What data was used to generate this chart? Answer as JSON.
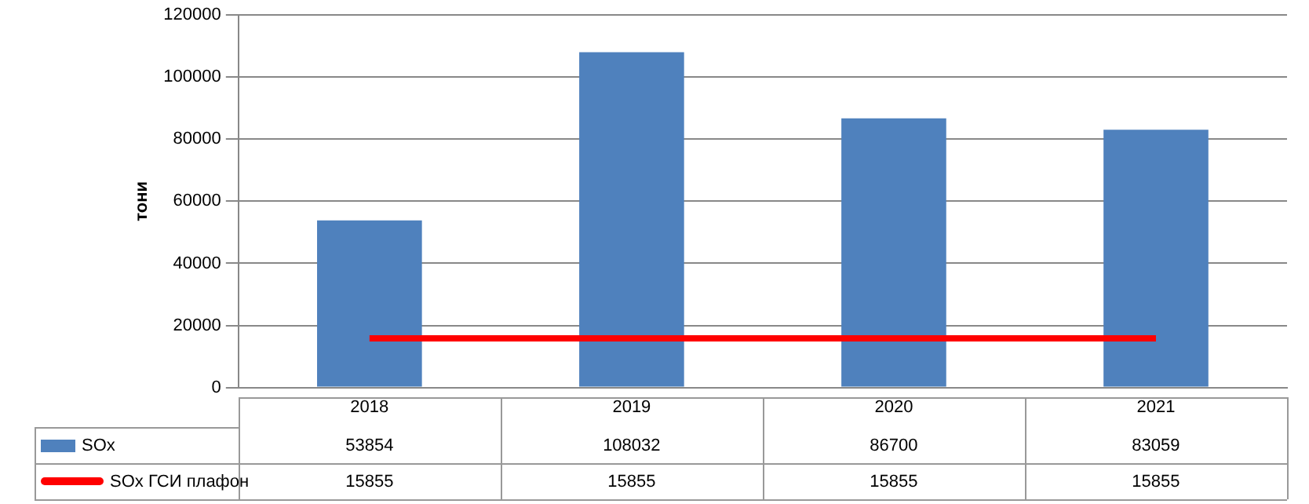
{
  "chart_data": {
    "type": "bar",
    "ylabel": "тони",
    "categories": [
      "2018",
      "2019",
      "2020",
      "2021"
    ],
    "series": [
      {
        "name": "SOx",
        "color": "#4f81bd",
        "values": [
          53854,
          108032,
          86700,
          83059
        ]
      },
      {
        "name": "SOx ГСИ плафон",
        "type": "line",
        "color": "#ff0000",
        "values": [
          15855,
          15855,
          15855,
          15855
        ]
      }
    ],
    "ylim": [
      0,
      120000
    ],
    "yticks": [
      0,
      20000,
      40000,
      60000,
      80000,
      100000,
      120000
    ],
    "grid": "y",
    "legend": "bottom left",
    "data_labels": true,
    "marker": "none"
  }
}
